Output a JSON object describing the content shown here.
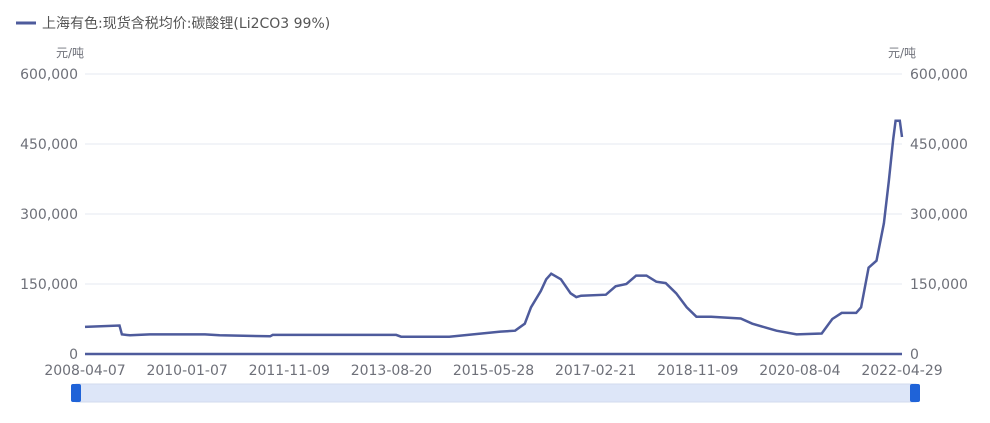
{
  "chart_data": {
    "type": "line",
    "legend": {
      "label": "上海有色:现货含税均价:碳酸锂(Li2CO3 99%)",
      "placement": "top-left"
    },
    "y_unit_left": "元/吨",
    "y_unit_right": "元/吨",
    "ylim": [
      0,
      600000
    ],
    "y_ticks": [
      "0",
      "150,000",
      "300,000",
      "450,000",
      "600,000"
    ],
    "x_ticks": [
      "2008-04-07",
      "2010-01-07",
      "2011-11-09",
      "2013-08-20",
      "2015-05-28",
      "2017-02-21",
      "2018-11-09",
      "2020-08-04",
      "2022-04-29"
    ],
    "grid": true,
    "color": "#4e5b9c",
    "series": [
      {
        "x": [
          "2008-04-07",
          "2008-11-10",
          "2008-11-25",
          "2009-01-15",
          "2009-05-20",
          "2010-05-01",
          "2010-08-01",
          "2011-06-15",
          "2011-07-01",
          "2013-08-15",
          "2013-09-15",
          "2014-07-15",
          "2015-06-01",
          "2015-09-01",
          "2015-11-01",
          "2015-12-10",
          "2016-02-10",
          "2016-03-15",
          "2016-04-15",
          "2016-06-15",
          "2016-08-15",
          "2016-09-20",
          "2016-10-20",
          "2017-03-25",
          "2017-05-25",
          "2017-08-01",
          "2017-10-01",
          "2017-12-05",
          "2018-02-05",
          "2018-04-05",
          "2018-06-10",
          "2018-08-15",
          "2018-10-15",
          "2019-01-15",
          "2019-07-20",
          "2019-10-01",
          "2020-01-01",
          "2020-03-01",
          "2020-07-05",
          "2020-12-10",
          "2021-02-15",
          "2021-04-15",
          "2021-07-15",
          "2021-08-15",
          "2021-10-01",
          "2021-11-20",
          "2022-01-05",
          "2022-02-05",
          "2022-03-05",
          "2022-03-20",
          "2022-04-15",
          "2022-04-29"
        ],
        "values": [
          58000,
          61000,
          42000,
          40000,
          42000,
          42000,
          40000,
          38000,
          41000,
          41000,
          37000,
          37000,
          48000,
          50000,
          65000,
          100000,
          135000,
          160000,
          172000,
          160000,
          130000,
          122000,
          125000,
          127000,
          145000,
          150000,
          168000,
          168000,
          155000,
          152000,
          130000,
          100000,
          80000,
          80000,
          76000,
          65000,
          56000,
          50000,
          42000,
          44000,
          75000,
          88000,
          88000,
          100000,
          185000,
          200000,
          280000,
          370000,
          460000,
          500000,
          500000,
          465000
        ]
      }
    ]
  },
  "datazoom": {
    "start_fraction": 0,
    "end_fraction": 1
  }
}
